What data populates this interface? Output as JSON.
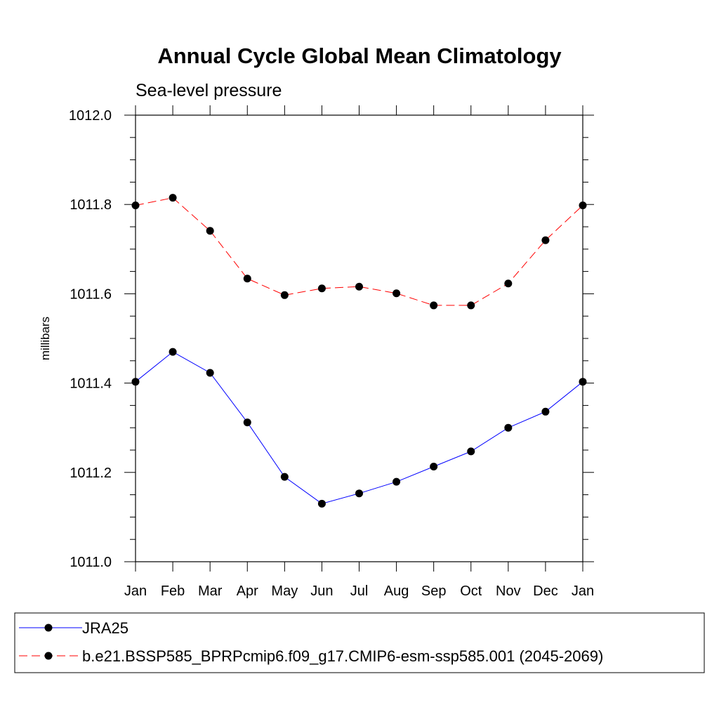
{
  "chart_data": {
    "type": "line",
    "title": "Annual Cycle Global Mean Climatology",
    "subtitle": "Sea-level pressure",
    "ylabel": "millibars",
    "xlabel": "",
    "categories": [
      "Jan",
      "Feb",
      "Mar",
      "Apr",
      "May",
      "Jun",
      "Jul",
      "Aug",
      "Sep",
      "Oct",
      "Nov",
      "Dec",
      "Jan"
    ],
    "ylim": [
      1011.0,
      1012.0
    ],
    "yticks": [
      "1011.0",
      "1011.2",
      "1011.4",
      "1011.6",
      "1011.8",
      "1012.0"
    ],
    "ytick_values": [
      1011.0,
      1011.2,
      1011.4,
      1011.6,
      1011.8,
      1012.0
    ],
    "grid": false,
    "legend_position": "bottom",
    "series": [
      {
        "name": "JRA25",
        "color": "#0000ff",
        "dash": "solid",
        "marker": "filled-circle",
        "values": [
          1011.403,
          1011.47,
          1011.423,
          1011.312,
          1011.19,
          1011.13,
          1011.153,
          1011.179,
          1011.213,
          1011.247,
          1011.3,
          1011.336,
          1011.403
        ]
      },
      {
        "name": "b.e21.BSSP585_BPRPcmip6.f09_g17.CMIP6-esm-ssp585.001 (2045-2069)",
        "color": "#ff0000",
        "dash": "dashed",
        "marker": "filled-circle",
        "values": [
          1011.798,
          1011.815,
          1011.741,
          1011.634,
          1011.597,
          1011.612,
          1011.616,
          1011.601,
          1011.574,
          1011.574,
          1011.623,
          1011.72,
          1011.798
        ]
      }
    ]
  }
}
